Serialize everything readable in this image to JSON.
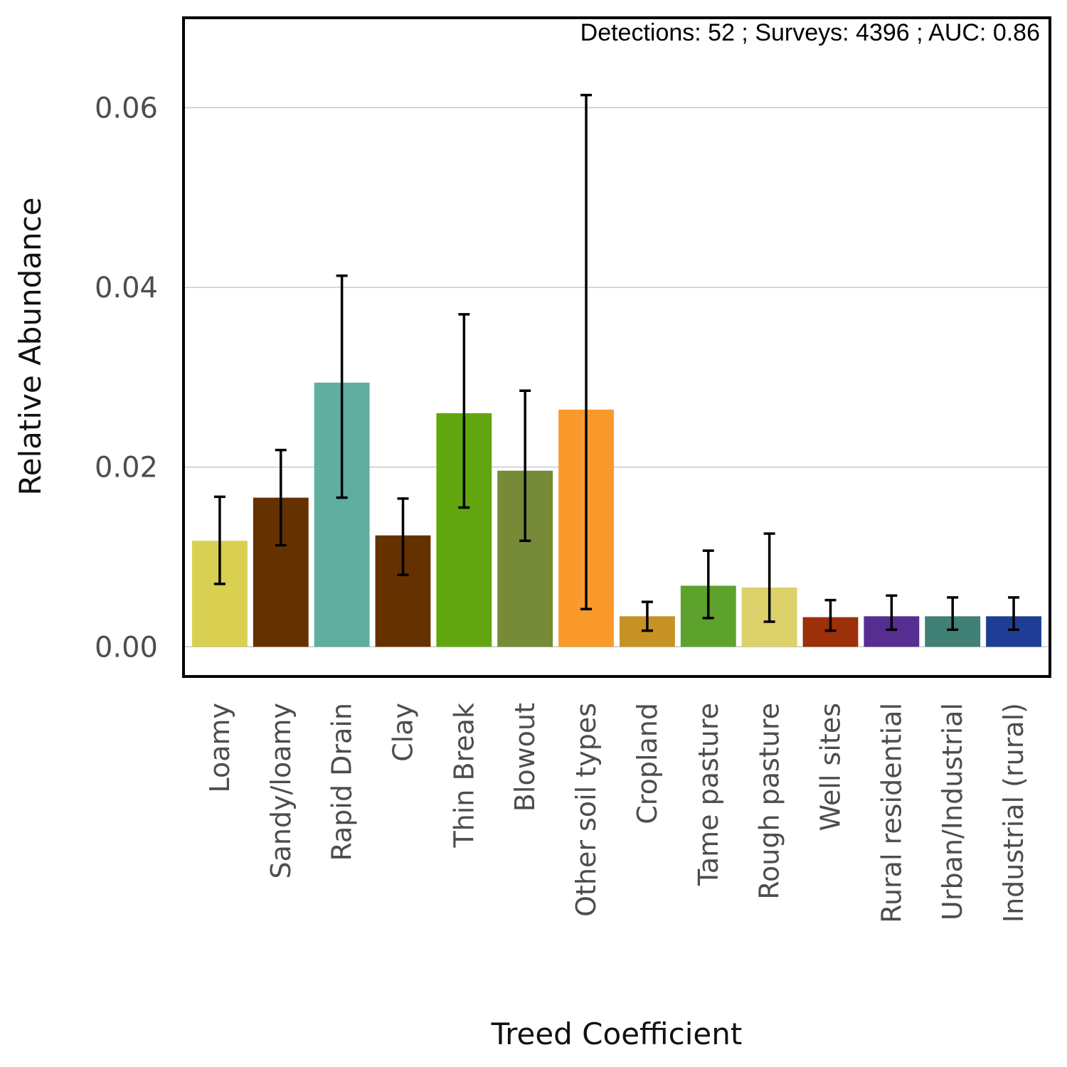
{
  "chart_data": {
    "type": "bar",
    "annotation": "Detections: 52 ; Surveys: 4396 ; AUC: 0.86",
    "xlabel": "Treed Coefficient",
    "ylabel": "Relative Abundance",
    "ylim": [
      -0.0033,
      0.07
    ],
    "yticks": [
      0.0,
      0.02,
      0.04,
      0.06
    ],
    "ytick_labels": [
      "0.00",
      "0.02",
      "0.04",
      "0.06"
    ],
    "grid": "horizontal",
    "categories": [
      "Loamy",
      "Sandy/loamy",
      "Rapid Drain",
      "Clay",
      "Thin Break",
      "Blowout",
      "Other soil types",
      "Cropland",
      "Tame pasture",
      "Rough pasture",
      "Well sites",
      "Rural residential",
      "Urban/Industrial",
      "Industrial (rural)"
    ],
    "values": [
      0.0118,
      0.0166,
      0.0294,
      0.0124,
      0.026,
      0.0196,
      0.0264,
      0.0034,
      0.0068,
      0.0066,
      0.0033,
      0.0034,
      0.0034,
      0.0034
    ],
    "error_low": [
      0.007,
      0.0113,
      0.0166,
      0.008,
      0.0155,
      0.0118,
      0.0042,
      0.0018,
      0.0032,
      0.0028,
      0.0018,
      0.0019,
      0.0019,
      0.0019
    ],
    "error_high": [
      0.0167,
      0.0219,
      0.0413,
      0.0165,
      0.037,
      0.0285,
      0.0614,
      0.005,
      0.0107,
      0.0126,
      0.0052,
      0.0057,
      0.0055,
      0.0055
    ],
    "colors": [
      "#d9d052",
      "#663100",
      "#5faea0",
      "#663100",
      "#62a60f",
      "#768a37",
      "#fb9a2c",
      "#c79224",
      "#5ea22e",
      "#dcd16a",
      "#9c300b",
      "#562d91",
      "#418076",
      "#203d96"
    ]
  }
}
